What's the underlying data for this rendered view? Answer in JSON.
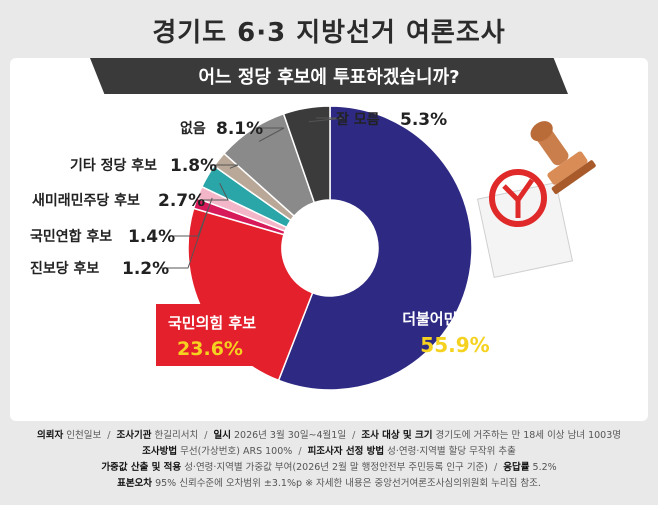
{
  "title": "경기도 6·3 지방선거 여론조사",
  "question": "어느 정당 후보에 투표하겠습니까?",
  "chart_data": {
    "type": "pie",
    "style": "donut",
    "unit": "%",
    "slices": [
      {
        "label": "더불어민주당 후보",
        "value": 55.9,
        "color": "#2e2a84"
      },
      {
        "label": "국민의힘 후보",
        "value": 23.6,
        "color": "#e5202d"
      },
      {
        "label": "진보당 후보",
        "value": 1.2,
        "color": "#d71a5a"
      },
      {
        "label": "국민연합 후보",
        "value": 1.4,
        "color": "#f3b6c8"
      },
      {
        "label": "새미래민주당 후보",
        "value": 2.7,
        "color": "#2aa5a8"
      },
      {
        "label": "기타 정당 후보",
        "value": 1.8,
        "color": "#b9a898"
      },
      {
        "label": "없음",
        "value": 8.1,
        "color": "#8a8a8a"
      },
      {
        "label": "잘 모름",
        "value": 5.3,
        "color": "#3b3b3b"
      }
    ]
  },
  "labels": {
    "dem": {
      "name": "더불어민주당 후보",
      "value": "55.9%"
    },
    "ppp": {
      "name": "국민의힘 후보",
      "value": "23.6%"
    },
    "jinbo": {
      "name": "진보당 후보",
      "value": "1.2%"
    },
    "kukmin": {
      "name": "국민연합 후보",
      "value": "1.4%"
    },
    "saemirae": {
      "name": "새미래민주당 후보",
      "value": "2.7%"
    },
    "gita": {
      "name": "기타 정당 후보",
      "value": "1.8%"
    },
    "none": {
      "name": "없음",
      "value": "8.1%"
    },
    "unknown": {
      "name": "잘 모름",
      "value": "5.3%"
    }
  },
  "footer": {
    "client_label": "의뢰자",
    "client": "인천일보",
    "agency_label": "조사기관",
    "agency": "한길리서치",
    "date_label": "일시",
    "date": "2026년 3월 30일~4월1일",
    "target_label": "조사 대상 및 크기",
    "target": "경기도에 거주하는 만 18세 이상 남녀 1003명",
    "method_label": "조사방법",
    "method": "무선(가상번호) ARS 100%",
    "sampling_label": "피조사자 선정 방법",
    "sampling": "성·연령·지역별 할당 무작위 추출",
    "weight_label": "가중값 산출 및 적용",
    "weight": "성·연령·지역별 가중값 부여(2026년 2월 말 행정안전부 주민등록 인구 기준)",
    "response_label": "응답률",
    "response": "5.2%",
    "error_label": "표본오차",
    "error": "95% 신뢰수준에 오차범위 ±3.1%p",
    "note": "※ 자세한 내용은 중앙선거여론조사심의위원회 누리집 참조."
  }
}
